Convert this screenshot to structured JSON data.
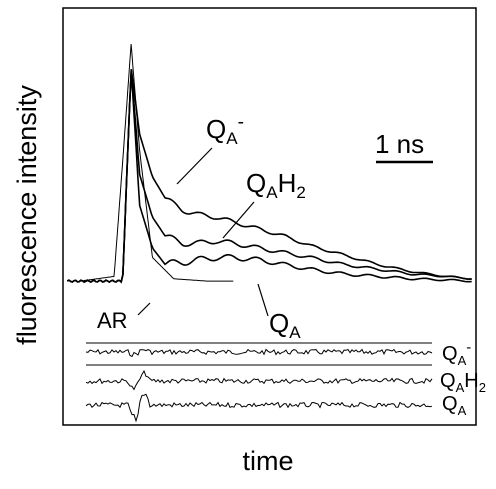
{
  "chart_data": {
    "type": "line",
    "xlabel": "time",
    "ylabel": "fluorescence intensity",
    "x_unit": "ns",
    "xlim": [
      -0.7,
      4.15
    ],
    "ylim": [
      -0.05,
      1.0
    ],
    "grid": false,
    "legend": "none",
    "scale_bar": {
      "label": "1 ns",
      "length_ns": 1
    },
    "series": [
      {
        "name": "QA-",
        "x": [
          0.0,
          0.1,
          0.2,
          0.35,
          0.5,
          0.7,
          0.9,
          1.1,
          1.3,
          1.6,
          1.9,
          2.2,
          2.6,
          3.0,
          3.4,
          3.8,
          4.1
        ],
        "y": [
          0.0,
          0.9,
          0.62,
          0.44,
          0.35,
          0.3,
          0.28,
          0.27,
          0.25,
          0.22,
          0.19,
          0.15,
          0.11,
          0.07,
          0.04,
          0.02,
          0.01
        ]
      },
      {
        "name": "QAH2",
        "x": [
          0.0,
          0.1,
          0.2,
          0.35,
          0.5,
          0.7,
          0.9,
          1.1,
          1.3,
          1.6,
          1.9,
          2.2,
          2.6,
          3.0,
          3.4,
          3.8,
          4.1
        ],
        "y": [
          0.0,
          0.9,
          0.45,
          0.27,
          0.19,
          0.16,
          0.16,
          0.17,
          0.16,
          0.14,
          0.12,
          0.1,
          0.07,
          0.05,
          0.03,
          0.02,
          0.01
        ]
      },
      {
        "name": "QA",
        "x": [
          0.0,
          0.1,
          0.2,
          0.35,
          0.5,
          0.7,
          0.9,
          1.1,
          1.3,
          1.6,
          1.9,
          2.2,
          2.6,
          3.0,
          3.4,
          3.8,
          4.1
        ],
        "y": [
          0.0,
          0.9,
          0.32,
          0.14,
          0.07,
          0.08,
          0.09,
          0.1,
          0.1,
          0.09,
          0.07,
          0.05,
          0.03,
          0.02,
          0.01,
          0.005,
          0.0
        ]
      },
      {
        "name": "AR",
        "x": [
          -0.5,
          -0.1,
          0.0,
          0.1,
          0.2,
          0.35,
          0.6,
          1.0,
          2.0
        ],
        "y": [
          0.0,
          0.02,
          0.5,
          1.0,
          0.55,
          0.1,
          0.01,
          0.0,
          0.0
        ]
      }
    ],
    "annotations": {
      "label_qa_minus": "QA-",
      "label_qah2": "QAH2",
      "label_qa": "QA",
      "label_ar": "AR",
      "residual_labels": [
        "QA-",
        "QAH2",
        "QA"
      ]
    }
  }
}
